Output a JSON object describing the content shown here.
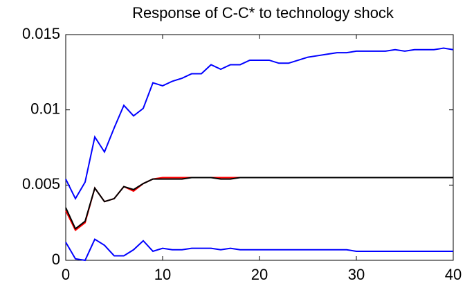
{
  "chart_data": {
    "type": "line",
    "title": "Response of C-C* to technology shock",
    "x": [
      0,
      1,
      2,
      3,
      4,
      5,
      6,
      7,
      8,
      9,
      10,
      11,
      12,
      13,
      14,
      15,
      16,
      17,
      18,
      19,
      20,
      21,
      22,
      23,
      24,
      25,
      26,
      27,
      28,
      29,
      30,
      31,
      32,
      33,
      34,
      35,
      36,
      37,
      38,
      39,
      40
    ],
    "series": [
      {
        "color": "#0000ff",
        "values": [
          0.0054,
          0.0041,
          0.0052,
          0.0082,
          0.0072,
          0.0088,
          0.0103,
          0.0096,
          0.0101,
          0.0118,
          0.0116,
          0.0119,
          0.0121,
          0.0124,
          0.0124,
          0.013,
          0.0127,
          0.013,
          0.013,
          0.0133,
          0.0133,
          0.0133,
          0.0131,
          0.0131,
          0.0133,
          0.0135,
          0.0136,
          0.0137,
          0.0138,
          0.0138,
          0.0139,
          0.0139,
          0.0139,
          0.0139,
          0.014,
          0.0139,
          0.014,
          0.014,
          0.014,
          0.0141,
          0.014
        ]
      },
      {
        "color": "#ff0000",
        "values": [
          0.0033,
          0.002,
          0.0025,
          0.0048,
          0.0039,
          0.0041,
          0.0049,
          0.0046,
          0.0051,
          0.0054,
          0.0055,
          0.0055,
          0.0055,
          0.0055,
          0.0055,
          0.0055,
          0.0055,
          0.0055,
          0.0055,
          0.0055,
          0.0055,
          0.0055,
          0.0055,
          0.0055,
          0.0055,
          0.0055,
          0.0055,
          0.0055,
          0.0055,
          0.0055,
          0.0055,
          0.0055,
          0.0055,
          0.0055,
          0.0055,
          0.0055,
          0.0055,
          0.0055,
          0.0055,
          0.0055,
          0.0055
        ]
      },
      {
        "color": "#000000",
        "values": [
          0.0035,
          0.0021,
          0.0026,
          0.0048,
          0.0039,
          0.0041,
          0.0049,
          0.0047,
          0.0051,
          0.0054,
          0.0054,
          0.0054,
          0.0054,
          0.0055,
          0.0055,
          0.0055,
          0.0054,
          0.0054,
          0.0055,
          0.0055,
          0.0055,
          0.0055,
          0.0055,
          0.0055,
          0.0055,
          0.0055,
          0.0055,
          0.0055,
          0.0055,
          0.0055,
          0.0055,
          0.0055,
          0.0055,
          0.0055,
          0.0055,
          0.0055,
          0.0055,
          0.0055,
          0.0055,
          0.0055,
          0.0055
        ]
      },
      {
        "color": "#0000ff",
        "values": [
          0.0012,
          0.0001,
          0,
          0.0014,
          0.001,
          0.0003,
          0.0003,
          0.0007,
          0.0013,
          0.0006,
          0.0008,
          0.0007,
          0.0007,
          0.0008,
          0.0008,
          0.0008,
          0.0007,
          0.0008,
          0.0007,
          0.0007,
          0.0007,
          0.0007,
          0.0007,
          0.0007,
          0.0007,
          0.0007,
          0.0007,
          0.0007,
          0.0007,
          0.0007,
          0.0006,
          0.0006,
          0.0006,
          0.0006,
          0.0006,
          0.0006,
          0.0006,
          0.0006,
          0.0006,
          0.0006,
          0.0006
        ]
      }
    ],
    "xlim": [
      0,
      40
    ],
    "xticks": [
      0,
      10,
      20,
      30,
      40
    ],
    "ylim": [
      0,
      0.015
    ],
    "yticks": [
      0,
      0.005,
      0.01,
      0.015
    ]
  }
}
